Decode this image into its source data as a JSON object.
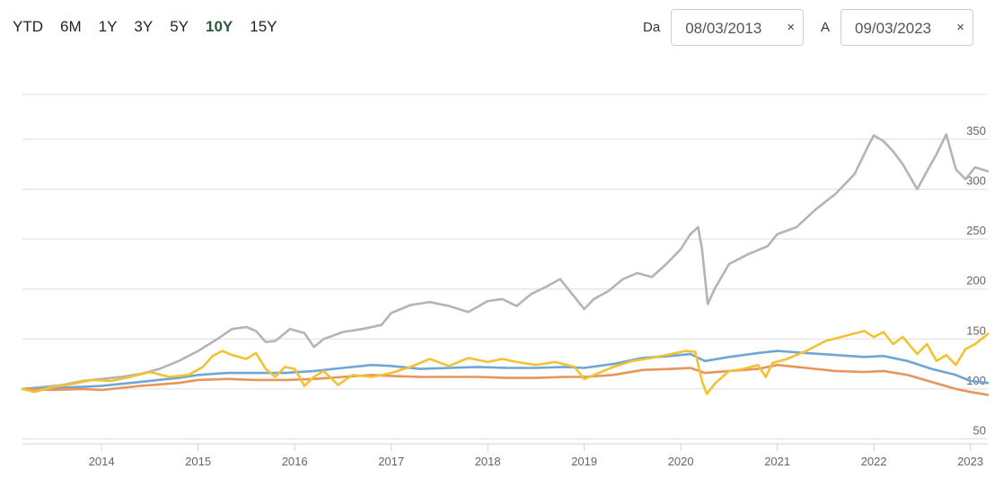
{
  "range_buttons": [
    {
      "label": "YTD",
      "active": false
    },
    {
      "label": "6M",
      "active": false
    },
    {
      "label": "1Y",
      "active": false
    },
    {
      "label": "3Y",
      "active": false
    },
    {
      "label": "5Y",
      "active": false
    },
    {
      "label": "10Y",
      "active": true
    },
    {
      "label": "15Y",
      "active": false
    }
  ],
  "date_from": {
    "label": "Da",
    "value": "08/03/2013",
    "clear": "×"
  },
  "date_to": {
    "label": "A",
    "value": "09/03/2023",
    "clear": "×"
  },
  "chart_data": {
    "type": "line",
    "title": "",
    "xlabel": "",
    "ylabel": "",
    "x_ticks": [
      "2014",
      "2015",
      "2016",
      "2017",
      "2018",
      "2019",
      "2020",
      "2021",
      "2022",
      "2023"
    ],
    "y_ticks": [
      50,
      100,
      150,
      200,
      250,
      300,
      350
    ],
    "ylim": [
      45,
      395
    ],
    "xlim": [
      2013.18,
      2023.18
    ],
    "grid": true,
    "series": [
      {
        "color": "#b4b4b4",
        "points": [
          [
            2013.18,
            100
          ],
          [
            2013.4,
            102
          ],
          [
            2013.6,
            104
          ],
          [
            2013.8,
            108
          ],
          [
            2014.0,
            110
          ],
          [
            2014.2,
            112
          ],
          [
            2014.4,
            115
          ],
          [
            2014.6,
            120
          ],
          [
            2014.8,
            128
          ],
          [
            2015.0,
            138
          ],
          [
            2015.2,
            150
          ],
          [
            2015.35,
            160
          ],
          [
            2015.5,
            162
          ],
          [
            2015.6,
            158
          ],
          [
            2015.7,
            147
          ],
          [
            2015.8,
            148
          ],
          [
            2015.95,
            160
          ],
          [
            2016.1,
            156
          ],
          [
            2016.2,
            142
          ],
          [
            2016.3,
            150
          ],
          [
            2016.5,
            157
          ],
          [
            2016.7,
            160
          ],
          [
            2016.9,
            164
          ],
          [
            2017.0,
            176
          ],
          [
            2017.2,
            184
          ],
          [
            2017.4,
            187
          ],
          [
            2017.6,
            183
          ],
          [
            2017.8,
            177
          ],
          [
            2018.0,
            188
          ],
          [
            2018.15,
            190
          ],
          [
            2018.3,
            183
          ],
          [
            2018.45,
            195
          ],
          [
            2018.6,
            202
          ],
          [
            2018.75,
            210
          ],
          [
            2018.9,
            192
          ],
          [
            2019.0,
            180
          ],
          [
            2019.1,
            190
          ],
          [
            2019.25,
            198
          ],
          [
            2019.4,
            210
          ],
          [
            2019.55,
            216
          ],
          [
            2019.7,
            212
          ],
          [
            2019.85,
            225
          ],
          [
            2020.0,
            240
          ],
          [
            2020.1,
            255
          ],
          [
            2020.18,
            262
          ],
          [
            2020.22,
            240
          ],
          [
            2020.28,
            185
          ],
          [
            2020.35,
            200
          ],
          [
            2020.5,
            225
          ],
          [
            2020.7,
            235
          ],
          [
            2020.9,
            243
          ],
          [
            2021.0,
            255
          ],
          [
            2021.2,
            262
          ],
          [
            2021.4,
            280
          ],
          [
            2021.6,
            295
          ],
          [
            2021.8,
            315
          ],
          [
            2021.95,
            345
          ],
          [
            2022.0,
            354
          ],
          [
            2022.1,
            348
          ],
          [
            2022.2,
            338
          ],
          [
            2022.3,
            325
          ],
          [
            2022.45,
            300
          ],
          [
            2022.55,
            318
          ],
          [
            2022.65,
            335
          ],
          [
            2022.75,
            355
          ],
          [
            2022.85,
            320
          ],
          [
            2022.95,
            310
          ],
          [
            2023.05,
            322
          ],
          [
            2023.18,
            318
          ]
        ]
      },
      {
        "color": "#6fa6d6",
        "points": [
          [
            2013.18,
            100
          ],
          [
            2013.5,
            101
          ],
          [
            2013.8,
            102
          ],
          [
            2014.0,
            103
          ],
          [
            2014.4,
            107
          ],
          [
            2014.8,
            111
          ],
          [
            2015.0,
            114
          ],
          [
            2015.3,
            116
          ],
          [
            2015.6,
            116
          ],
          [
            2015.9,
            116
          ],
          [
            2016.2,
            118
          ],
          [
            2016.5,
            121
          ],
          [
            2016.8,
            124
          ],
          [
            2017.0,
            123
          ],
          [
            2017.3,
            120
          ],
          [
            2017.6,
            121
          ],
          [
            2017.9,
            122
          ],
          [
            2018.2,
            121
          ],
          [
            2018.5,
            121
          ],
          [
            2018.8,
            122
          ],
          [
            2019.0,
            121
          ],
          [
            2019.3,
            125
          ],
          [
            2019.6,
            131
          ],
          [
            2019.9,
            133
          ],
          [
            2020.1,
            135
          ],
          [
            2020.25,
            128
          ],
          [
            2020.5,
            132
          ],
          [
            2020.8,
            136
          ],
          [
            2021.0,
            138
          ],
          [
            2021.3,
            136
          ],
          [
            2021.6,
            134
          ],
          [
            2021.9,
            132
          ],
          [
            2022.1,
            133
          ],
          [
            2022.35,
            128
          ],
          [
            2022.6,
            120
          ],
          [
            2022.85,
            114
          ],
          [
            2023.0,
            108
          ],
          [
            2023.18,
            106
          ]
        ]
      },
      {
        "color": "#e8955a",
        "points": [
          [
            2013.18,
            100
          ],
          [
            2013.5,
            99
          ],
          [
            2013.8,
            100
          ],
          [
            2014.0,
            99
          ],
          [
            2014.4,
            103
          ],
          [
            2014.8,
            106
          ],
          [
            2015.0,
            109
          ],
          [
            2015.3,
            110
          ],
          [
            2015.6,
            109
          ],
          [
            2015.9,
            109
          ],
          [
            2016.2,
            110
          ],
          [
            2016.5,
            112
          ],
          [
            2016.8,
            114
          ],
          [
            2017.0,
            113
          ],
          [
            2017.3,
            112
          ],
          [
            2017.6,
            112
          ],
          [
            2017.9,
            112
          ],
          [
            2018.2,
            111
          ],
          [
            2018.5,
            111
          ],
          [
            2018.8,
            112
          ],
          [
            2019.0,
            112
          ],
          [
            2019.3,
            114
          ],
          [
            2019.6,
            119
          ],
          [
            2019.9,
            120
          ],
          [
            2020.1,
            121
          ],
          [
            2020.25,
            116
          ],
          [
            2020.5,
            118
          ],
          [
            2020.8,
            120
          ],
          [
            2021.0,
            124
          ],
          [
            2021.3,
            121
          ],
          [
            2021.6,
            118
          ],
          [
            2021.9,
            117
          ],
          [
            2022.1,
            118
          ],
          [
            2022.35,
            114
          ],
          [
            2022.6,
            107
          ],
          [
            2022.85,
            100
          ],
          [
            2023.0,
            97
          ],
          [
            2023.18,
            94
          ]
        ]
      },
      {
        "color": "#f2c232",
        "points": [
          [
            2013.18,
            100
          ],
          [
            2013.3,
            97
          ],
          [
            2013.5,
            102
          ],
          [
            2013.7,
            105
          ],
          [
            2013.9,
            109
          ],
          [
            2014.1,
            108
          ],
          [
            2014.3,
            112
          ],
          [
            2014.5,
            117
          ],
          [
            2014.7,
            112
          ],
          [
            2014.9,
            114
          ],
          [
            2015.05,
            122
          ],
          [
            2015.15,
            133
          ],
          [
            2015.25,
            138
          ],
          [
            2015.35,
            134
          ],
          [
            2015.5,
            130
          ],
          [
            2015.6,
            136
          ],
          [
            2015.7,
            120
          ],
          [
            2015.8,
            112
          ],
          [
            2015.9,
            122
          ],
          [
            2016.0,
            120
          ],
          [
            2016.05,
            112
          ],
          [
            2016.1,
            103
          ],
          [
            2016.2,
            112
          ],
          [
            2016.3,
            118
          ],
          [
            2016.45,
            104
          ],
          [
            2016.6,
            114
          ],
          [
            2016.8,
            112
          ],
          [
            2017.0,
            116
          ],
          [
            2017.2,
            122
          ],
          [
            2017.4,
            130
          ],
          [
            2017.6,
            123
          ],
          [
            2017.8,
            131
          ],
          [
            2018.0,
            127
          ],
          [
            2018.15,
            130
          ],
          [
            2018.3,
            127
          ],
          [
            2018.5,
            124
          ],
          [
            2018.7,
            127
          ],
          [
            2018.9,
            122
          ],
          [
            2019.0,
            110
          ],
          [
            2019.15,
            116
          ],
          [
            2019.3,
            122
          ],
          [
            2019.5,
            128
          ],
          [
            2019.7,
            131
          ],
          [
            2019.9,
            135
          ],
          [
            2020.05,
            138
          ],
          [
            2020.15,
            137
          ],
          [
            2020.22,
            108
          ],
          [
            2020.27,
            95
          ],
          [
            2020.35,
            105
          ],
          [
            2020.5,
            118
          ],
          [
            2020.65,
            120
          ],
          [
            2020.8,
            124
          ],
          [
            2020.88,
            112
          ],
          [
            2020.95,
            126
          ],
          [
            2021.1,
            130
          ],
          [
            2021.3,
            138
          ],
          [
            2021.5,
            148
          ],
          [
            2021.7,
            153
          ],
          [
            2021.9,
            158
          ],
          [
            2022.0,
            152
          ],
          [
            2022.1,
            157
          ],
          [
            2022.2,
            145
          ],
          [
            2022.3,
            152
          ],
          [
            2022.45,
            135
          ],
          [
            2022.55,
            145
          ],
          [
            2022.65,
            128
          ],
          [
            2022.75,
            134
          ],
          [
            2022.85,
            124
          ],
          [
            2022.95,
            140
          ],
          [
            2023.05,
            145
          ],
          [
            2023.18,
            155
          ]
        ]
      }
    ]
  }
}
